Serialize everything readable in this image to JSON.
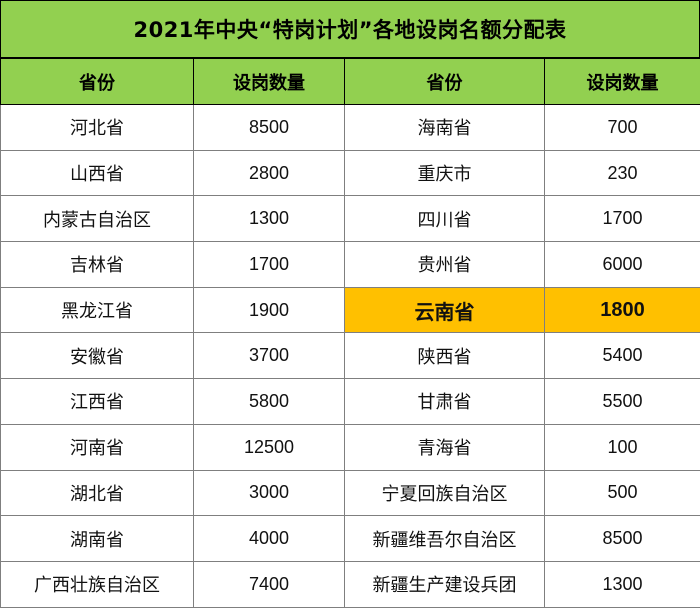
{
  "title": "2021年中央“特岗计划”各地设岗名额分配表",
  "headers": [
    "省份",
    "设岗数量",
    "省份",
    "设岗数量"
  ],
  "rows": [
    [
      "河北省",
      "8500",
      "海南省",
      "700"
    ],
    [
      "山西省",
      "2800",
      "重庆市",
      "230"
    ],
    [
      "内蒙古自治区",
      "1300",
      "四川省",
      "1700"
    ],
    [
      "吉林省",
      "1700",
      "贵州省",
      "6000"
    ],
    [
      "黑龙江省",
      "1900",
      "云南省",
      "1800"
    ],
    [
      "安徽省",
      "3700",
      "陕西省",
      "5400"
    ],
    [
      "江西省",
      "5800",
      "甘肃省",
      "5500"
    ],
    [
      "河南省",
      "12500",
      "青海省",
      "100"
    ],
    [
      "湖北省",
      "3000",
      "宁夏回族自治区",
      "500"
    ],
    [
      "湖南省",
      "4000",
      "新疆维吾尔自治区",
      "8500"
    ],
    [
      "广西壮族自治区",
      "7400",
      "新疆生产建设兵团",
      "1300"
    ]
  ],
  "highlight": {
    "row": 4,
    "province": "云南省",
    "count": "1800"
  },
  "colors": {
    "header_bg": "#92d050",
    "highlight_bg": "#ffc000",
    "grid": "#7f7f7f"
  }
}
